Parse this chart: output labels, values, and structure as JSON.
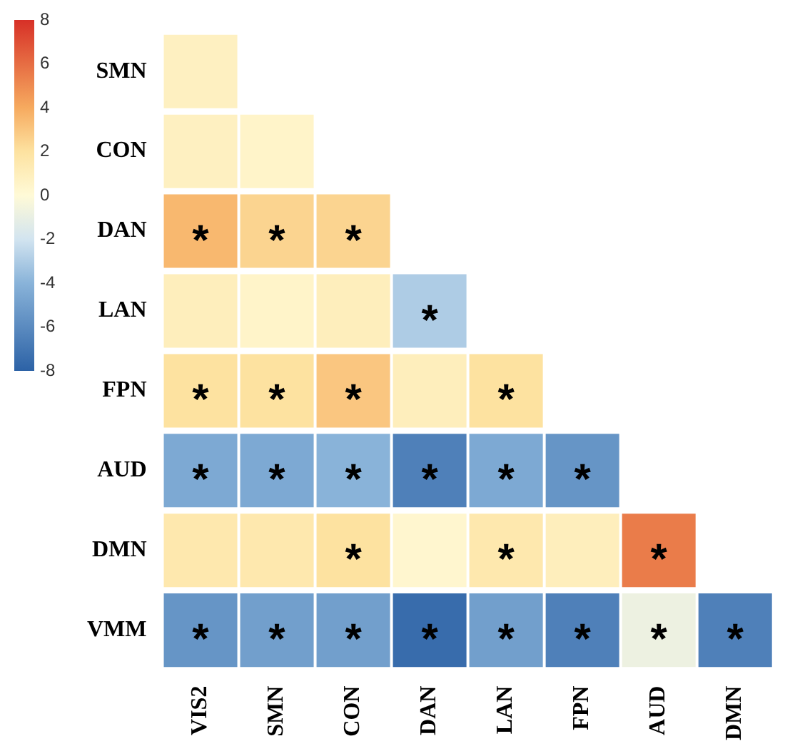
{
  "chart_data": {
    "type": "heatmap",
    "categories": [
      "VIS2",
      "SMN",
      "CON",
      "DAN",
      "LAN",
      "FPN",
      "AUD",
      "DMN"
    ],
    "y_categories": [
      "SMN",
      "CON",
      "DAN",
      "LAN",
      "FPN",
      "AUD",
      "DMN",
      "VMM"
    ],
    "cells": [
      [
        0.8,
        null,
        null,
        null,
        null,
        null,
        null,
        null
      ],
      [
        0.8,
        0.5,
        null,
        null,
        null,
        null,
        null,
        null
      ],
      [
        3.5,
        2.5,
        2.5,
        null,
        null,
        null,
        null,
        null
      ],
      [
        1,
        0.5,
        1,
        -3,
        null,
        null,
        null,
        null
      ],
      [
        2,
        2,
        3,
        1,
        2,
        null,
        null,
        null
      ],
      [
        -4.5,
        -4.5,
        -4,
        -6.5,
        -4.5,
        -5.5,
        null,
        null
      ],
      [
        1.5,
        1.5,
        2,
        0.3,
        1.5,
        1,
        5.5,
        null
      ],
      [
        -5.5,
        -5,
        -5,
        -7.5,
        -5,
        -6.5,
        -0.8,
        -6.5
      ]
    ],
    "cell_labels": [
      [
        null,
        null,
        null,
        null,
        null,
        null,
        null,
        null
      ],
      [
        null,
        null,
        null,
        null,
        null,
        null,
        null,
        null
      ],
      [
        "*",
        "*",
        "*",
        null,
        null,
        null,
        null,
        null
      ],
      [
        null,
        null,
        null,
        "*",
        null,
        null,
        null,
        null
      ],
      [
        "*",
        "*",
        "*",
        null,
        "*",
        null,
        null,
        null
      ],
      [
        "*",
        "*",
        "*",
        "*",
        "*",
        "*",
        null,
        null
      ],
      [
        null,
        null,
        "*",
        null,
        "*",
        null,
        "*",
        null
      ],
      [
        "*",
        "*",
        "*",
        "*",
        "*",
        "*",
        "*",
        "*"
      ]
    ],
    "clim": [
      -8,
      8
    ],
    "cticks": [
      -8,
      -6,
      -4,
      -2,
      0,
      2,
      4,
      6,
      8
    ]
  }
}
